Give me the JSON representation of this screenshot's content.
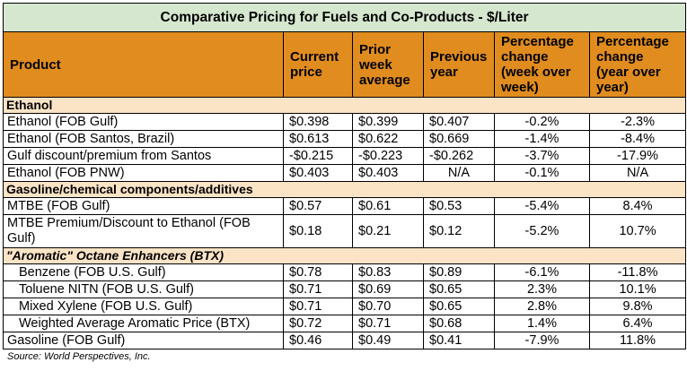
{
  "title": "Comparative Pricing for Fuels and Co-Products - $/Liter",
  "headers": {
    "product": "Product",
    "current": "Current price",
    "prior": "Prior week average",
    "previous": "Previous year",
    "pct_week": "Percentage change (week over week)",
    "pct_year": "Percentage change (year over year)"
  },
  "sections": [
    {
      "name": "Ethanol",
      "rows": [
        {
          "product": "Ethanol (FOB Gulf)",
          "current": "$0.398",
          "prior": "$0.399",
          "previous": "$0.407",
          "pct_week": "-0.2%",
          "pct_year": "-2.3%"
        },
        {
          "product": "Ethanol (FOB Santos, Brazil)",
          "current": "$0.613",
          "prior": "$0.622",
          "previous": "$0.669",
          "pct_week": "-1.4%",
          "pct_year": "-8.4%"
        },
        {
          "product": "Gulf discount/premium from Santos",
          "current": "-$0.215",
          "prior": "-$0.223",
          "previous": "-$0.262",
          "pct_week": "-3.7%",
          "pct_year": "-17.9%"
        },
        {
          "product": "Ethanol (FOB PNW)",
          "current": "$0.403",
          "prior": "$0.403",
          "previous": "N/A",
          "pct_week": "-0.1%",
          "pct_year": "N/A"
        }
      ]
    },
    {
      "name": "Gasoline/chemical components/additives",
      "rows": [
        {
          "product": "MTBE (FOB Gulf)",
          "current": "$0.57",
          "prior": "$0.61",
          "previous": "$0.53",
          "pct_week": "-5.4%",
          "pct_year": "8.4%"
        },
        {
          "product": "MTBE Premium/Discount to Ethanol (FOB Gulf)",
          "current": "$0.18",
          "prior": "$0.21",
          "previous": "$0.12",
          "pct_week": "-5.2%",
          "pct_year": "10.7%"
        }
      ]
    },
    {
      "name": "\"Aromatic\" Octane Enhancers (BTX)",
      "rows": [
        {
          "product": "Benzene (FOB U.S. Gulf)",
          "current": "$0.78",
          "prior": "$0.83",
          "previous": "$0.89",
          "pct_week": "-6.1%",
          "pct_year": "-11.8%"
        },
        {
          "product": "Toluene NITN (FOB U.S. Gulf)",
          "current": "$0.71",
          "prior": "$0.69",
          "previous": "$0.65",
          "pct_week": "2.3%",
          "pct_year": "10.1%"
        },
        {
          "product": "Mixed Xylene (FOB U.S. Gulf)",
          "current": "$0.71",
          "prior": "$0.70",
          "previous": "$0.65",
          "pct_week": "2.8%",
          "pct_year": "9.8%"
        },
        {
          "product": "Weighted Average Aromatic Price (BTX)",
          "current": "$0.72",
          "prior": "$0.71",
          "previous": "$0.68",
          "pct_week": "1.4%",
          "pct_year": "6.4%"
        },
        {
          "product": "Gasoline (FOB Gulf)",
          "current": "$0.46",
          "prior": "$0.49",
          "previous": "$0.41",
          "pct_week": "-7.9%",
          "pct_year": "11.8%"
        }
      ]
    }
  ],
  "source": "Source: World Perspectives, Inc.",
  "colors": {
    "title_bg": "#d6e7cf",
    "header_bg": "#e08c1e",
    "section_bg": "#fbe3c6"
  }
}
